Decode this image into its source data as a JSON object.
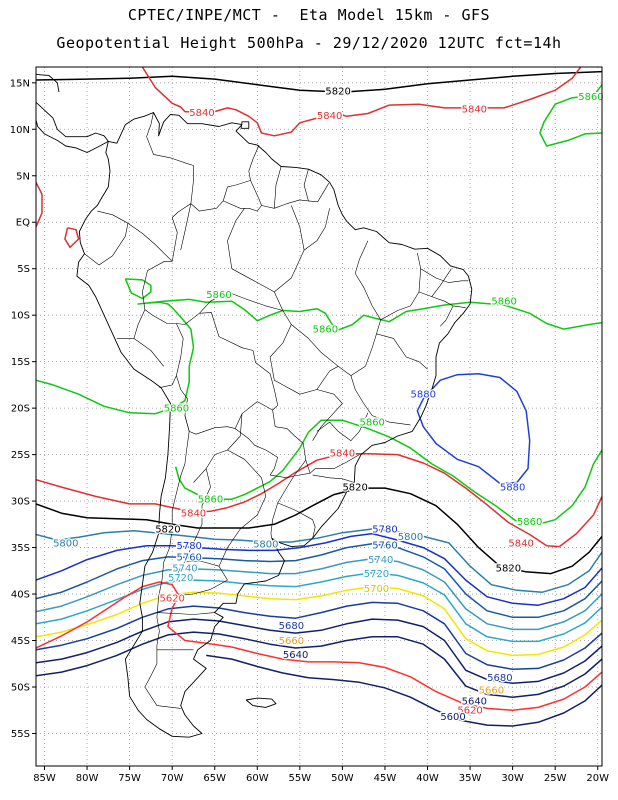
{
  "header": {
    "line1": "CPTEC/INPE/MCT -  Eta Model 15km - GFS",
    "line2": "Geopotential Height 500hPa - 29/12/2020 12UTC fct=14h"
  },
  "axes": {
    "lon_labels": [
      "85W",
      "80W",
      "75W",
      "70W",
      "65W",
      "60W",
      "55W",
      "50W",
      "45W",
      "40W",
      "35W",
      "30W",
      "25W",
      "20W"
    ],
    "lon_values": [
      -85,
      -80,
      -75,
      -70,
      -65,
      -60,
      -55,
      -50,
      -45,
      -40,
      -35,
      -30,
      -25,
      -20
    ],
    "lat_labels": [
      "15N",
      "10N",
      "5N",
      "EQ",
      "5S",
      "10S",
      "15S",
      "20S",
      "25S",
      "30S",
      "35S",
      "40S",
      "45S",
      "50S",
      "55S"
    ],
    "lat_values": [
      15,
      10,
      5,
      0,
      -5,
      -10,
      -15,
      -20,
      -25,
      -30,
      -35,
      -40,
      -45,
      -50,
      -55
    ],
    "lon_range": [
      -86,
      -19.5
    ],
    "lat_range": [
      -58.5,
      16.7
    ],
    "grid": "dotted"
  },
  "colors": {
    "c5620": "#ff3030",
    "c5640": "#e8a020",
    "c5660": "#12206a",
    "c5680": "#1a3c9e",
    "c5700": "#f2e600",
    "c5720": "#2fa8c8",
    "c5740": "#3a9ac0",
    "c5760": "#1a58a8",
    "c5780": "#1830c8",
    "c5800": "#2b7fa8",
    "c5820": "#000000",
    "c5840": "#e03030",
    "c5860": "#10c810",
    "c5880": "#2040d8",
    "land": "#000000"
  },
  "contour_labels": [
    {
      "text": "5820",
      "lon": -50.5,
      "lat": 14.1,
      "color": "#000000"
    },
    {
      "text": "5840",
      "lon": -66.5,
      "lat": 11.8,
      "color": "#e03030"
    },
    {
      "text": "5840",
      "lon": -51.5,
      "lat": 11.5,
      "color": "#e03030"
    },
    {
      "text": "5840",
      "lon": -34.5,
      "lat": 12.2,
      "color": "#e03030"
    },
    {
      "text": "5860",
      "lon": -20.8,
      "lat": 13.5,
      "color": "#10c810"
    },
    {
      "text": "5860",
      "lon": -64.5,
      "lat": -7.8,
      "color": "#10c810"
    },
    {
      "text": "5860",
      "lon": -52.0,
      "lat": -11.5,
      "color": "#10c810"
    },
    {
      "text": "5860",
      "lon": -31.0,
      "lat": -8.5,
      "color": "#10c810"
    },
    {
      "text": "5860",
      "lon": -69.5,
      "lat": -20.0,
      "color": "#10c810"
    },
    {
      "text": "5860",
      "lon": -46.5,
      "lat": -21.5,
      "color": "#10c810"
    },
    {
      "text": "5860",
      "lon": -65.5,
      "lat": -29.8,
      "color": "#10c810"
    },
    {
      "text": "5860",
      "lon": -28.0,
      "lat": -32.2,
      "color": "#10c810"
    },
    {
      "text": "5880",
      "lon": -40.5,
      "lat": -18.5,
      "color": "#2040d8"
    },
    {
      "text": "5880",
      "lon": -30.0,
      "lat": -28.5,
      "color": "#2040d8"
    },
    {
      "text": "5840",
      "lon": -50.0,
      "lat": -24.8,
      "color": "#e03030"
    },
    {
      "text": "5840",
      "lon": -67.5,
      "lat": -31.3,
      "color": "#e03030"
    },
    {
      "text": "5840",
      "lon": -29.0,
      "lat": -34.5,
      "color": "#e03030"
    },
    {
      "text": "5820",
      "lon": -48.5,
      "lat": -28.5,
      "color": "#000000"
    },
    {
      "text": "5820",
      "lon": -70.5,
      "lat": -33.0,
      "color": "#000000"
    },
    {
      "text": "5820",
      "lon": -30.5,
      "lat": -37.2,
      "color": "#000000"
    },
    {
      "text": "5800",
      "lon": -82.5,
      "lat": -34.5,
      "color": "#2b7fa8"
    },
    {
      "text": "5800",
      "lon": -59.0,
      "lat": -34.6,
      "color": "#2b7fa8"
    },
    {
      "text": "5800",
      "lon": -42.0,
      "lat": -33.8,
      "color": "#2b7fa8"
    },
    {
      "text": "5780",
      "lon": -68.0,
      "lat": -34.8,
      "color": "#1830c8"
    },
    {
      "text": "5780",
      "lon": -45.0,
      "lat": -33.0,
      "color": "#1830c8"
    },
    {
      "text": "5760",
      "lon": -45.0,
      "lat": -34.7,
      "color": "#1a58a8"
    },
    {
      "text": "5760",
      "lon": -68.0,
      "lat": -36.0,
      "color": "#1a58a8"
    },
    {
      "text": "5740",
      "lon": -45.5,
      "lat": -36.3,
      "color": "#3a9ac0"
    },
    {
      "text": "5740",
      "lon": -68.5,
      "lat": -37.2,
      "color": "#3a9ac0"
    },
    {
      "text": "5720",
      "lon": -46.0,
      "lat": -37.8,
      "color": "#2fa8c8"
    },
    {
      "text": "5720",
      "lon": -69.0,
      "lat": -38.2,
      "color": "#2fa8c8"
    },
    {
      "text": "5700",
      "lon": -46.0,
      "lat": -39.4,
      "color": "#d8c800"
    },
    {
      "text": "5620",
      "lon": -70.0,
      "lat": -40.4,
      "color": "#ff3030"
    },
    {
      "text": "5680",
      "lon": -56.0,
      "lat": -43.4,
      "color": "#1a3c9e"
    },
    {
      "text": "5660",
      "lon": -56.0,
      "lat": -45.0,
      "color": "#e8a020"
    },
    {
      "text": "5640",
      "lon": -55.5,
      "lat": -46.5,
      "color": "#12206a"
    },
    {
      "text": "5680",
      "lon": -31.5,
      "lat": -49.0,
      "color": "#1a3c9e"
    },
    {
      "text": "5660",
      "lon": -32.5,
      "lat": -50.3,
      "color": "#e8a020"
    },
    {
      "text": "5640",
      "lon": -34.5,
      "lat": -51.5,
      "color": "#12206a"
    },
    {
      "text": "5620",
      "lon": -35.0,
      "lat": -52.5,
      "color": "#e03030"
    },
    {
      "text": "5600",
      "lon": -37.0,
      "lat": -53.2,
      "color": "#12206a"
    }
  ]
}
